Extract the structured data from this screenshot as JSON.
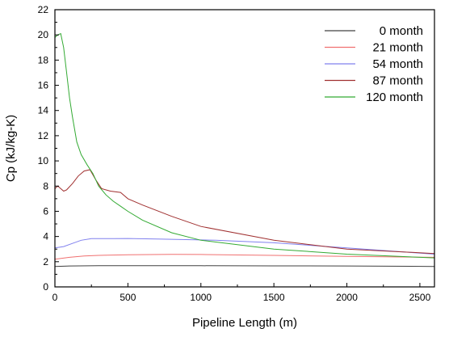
{
  "chart_data": {
    "type": "line",
    "xlabel": "Pipeline Length (m)",
    "ylabel": "Cp (kJ/kg-K)",
    "xlim": [
      0,
      2600
    ],
    "ylim": [
      0,
      22
    ],
    "xticks": [
      0,
      500,
      1000,
      1500,
      2000,
      2500
    ],
    "yticks": [
      0,
      2,
      4,
      6,
      8,
      10,
      12,
      14,
      16,
      18,
      20,
      22
    ],
    "grid": false,
    "legend_position": "top-right",
    "series": [
      {
        "name": "0 month",
        "color": "#404040",
        "x": [
          0,
          100,
          300,
          500,
          800,
          1000,
          1500,
          2000,
          2600
        ],
        "y": [
          1.62,
          1.66,
          1.68,
          1.69,
          1.69,
          1.68,
          1.67,
          1.66,
          1.62
        ]
      },
      {
        "name": "21 month",
        "color": "#f07070",
        "x": [
          0,
          100,
          200,
          300,
          500,
          800,
          1000,
          1500,
          2000,
          2600
        ],
        "y": [
          2.2,
          2.35,
          2.45,
          2.5,
          2.55,
          2.58,
          2.57,
          2.5,
          2.42,
          2.35
        ]
      },
      {
        "name": "54 month",
        "color": "#8080ee",
        "x": [
          0,
          60,
          120,
          180,
          250,
          300,
          400,
          500,
          700,
          900,
          1100,
          1500,
          2000,
          2600
        ],
        "y": [
          3.1,
          3.2,
          3.45,
          3.7,
          3.83,
          3.83,
          3.83,
          3.84,
          3.8,
          3.75,
          3.7,
          3.5,
          3.1,
          2.6
        ]
      },
      {
        "name": "87 month",
        "color": "#a03030",
        "x": [
          0,
          20,
          40,
          60,
          80,
          120,
          160,
          200,
          240,
          280,
          320,
          380,
          450,
          500,
          600,
          800,
          1000,
          1500,
          2000,
          2600
        ],
        "y": [
          7.8,
          8.0,
          7.8,
          7.6,
          7.7,
          8.2,
          8.8,
          9.2,
          9.3,
          8.5,
          7.8,
          7.6,
          7.5,
          7.0,
          6.5,
          5.6,
          4.8,
          3.7,
          3.0,
          2.65
        ]
      },
      {
        "name": "120 month",
        "color": "#33aa33",
        "x": [
          0,
          20,
          40,
          60,
          80,
          100,
          120,
          150,
          180,
          220,
          260,
          300,
          350,
          400,
          450,
          500,
          600,
          800,
          1000,
          1500,
          2000,
          2600
        ],
        "y": [
          19.8,
          20.0,
          20.1,
          19.0,
          17.0,
          15.0,
          13.5,
          11.5,
          10.5,
          9.7,
          9.0,
          8.0,
          7.3,
          6.8,
          6.4,
          6.0,
          5.3,
          4.3,
          3.7,
          3.0,
          2.6,
          2.3
        ]
      }
    ]
  }
}
